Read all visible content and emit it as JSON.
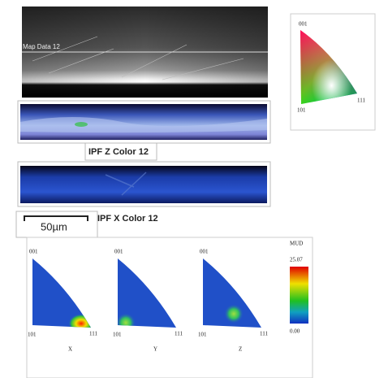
{
  "sem": {
    "label": "Map Data 12"
  },
  "ipf_key": {
    "corners": [
      "001",
      "101",
      "111"
    ]
  },
  "maps": [
    {
      "label": "IPF Z Color 12"
    },
    {
      "label": "IPF X Color 12"
    }
  ],
  "scale_bar": "50µm",
  "pole_figures": [
    {
      "axis": "X",
      "corners": [
        "001",
        "101",
        "111"
      ]
    },
    {
      "axis": "Y",
      "corners": [
        "001",
        "101",
        "111"
      ]
    },
    {
      "axis": "Z",
      "corners": [
        "001",
        "101",
        "111"
      ]
    }
  ],
  "colorbar": {
    "title": "MUD",
    "max": "25.07",
    "min": "0.00"
  }
}
